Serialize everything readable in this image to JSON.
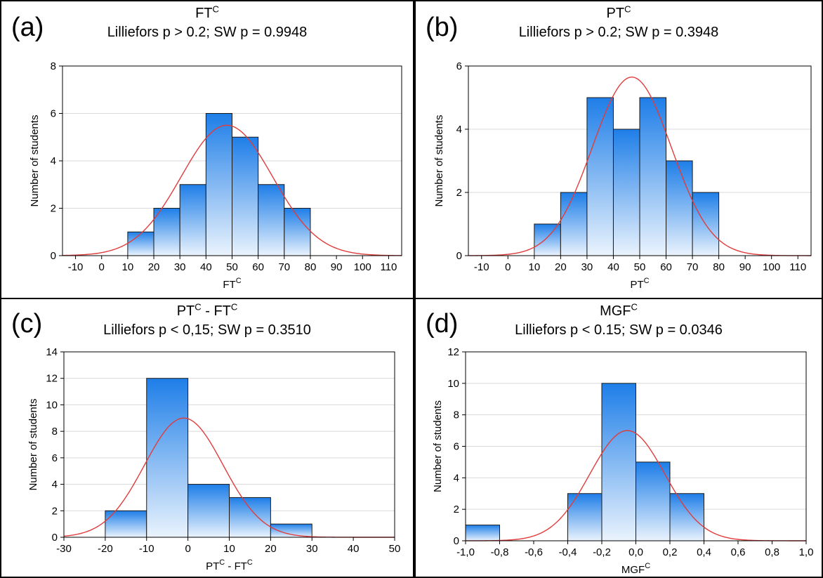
{
  "panels": [
    {
      "letter": "(a)",
      "title_main": "FT",
      "title_main_sup": "C",
      "title_main_part2": "",
      "title_main_part2_sup": "",
      "subtitle": "Lilliefors p > 0.2; SW p = 0.9948"
    },
    {
      "letter": "(b)",
      "title_main": "PT",
      "title_main_sup": "C",
      "title_main_part2": "",
      "title_main_part2_sup": "",
      "subtitle": "Lilliefors p > 0.2; SW p = 0.3948"
    },
    {
      "letter": "(c)",
      "title_main": "PT",
      "title_main_sup": "C",
      "title_main_part2": " - FT",
      "title_main_part2_sup": "C",
      "subtitle": "Lilliefors p < 0,15; SW p = 0.3510"
    },
    {
      "letter": "(d)",
      "title_main": "MGF",
      "title_main_sup": "C",
      "title_main_part2": "",
      "title_main_part2_sup": "",
      "subtitle": "Lilliefors p < 0.15; SW p = 0.0346"
    }
  ],
  "chart_data": [
    {
      "type": "bar",
      "title": "FT^C",
      "subtitle": "Lilliefors p > 0.2; SW p = 0.9948",
      "xlabel": "FT^C",
      "xlabel_base": "FT",
      "xlabel_sup": "C",
      "xlabel_base2": "",
      "xlabel_sup2": "",
      "ylabel": "Number of students",
      "xlim": [
        -15,
        115
      ],
      "ylim": [
        0,
        8
      ],
      "xticks": [
        -10,
        0,
        10,
        20,
        30,
        40,
        50,
        60,
        70,
        80,
        90,
        100,
        110
      ],
      "xtick_labels": [
        "-10",
        "0",
        "10",
        "20",
        "30",
        "40",
        "50",
        "60",
        "70",
        "80",
        "90",
        "100",
        "110"
      ],
      "yticks": [
        0,
        2,
        4,
        6,
        8
      ],
      "bin_edges": [
        10,
        20,
        30,
        40,
        50,
        60,
        70,
        80
      ],
      "values": [
        1,
        2,
        3,
        6,
        5,
        3,
        2
      ],
      "normal_fit": {
        "mean": 48,
        "sd": 17.5,
        "peak": 5.5
      },
      "grid": true,
      "bar_color": "#1e7ee8",
      "curve_color": "#e03c3c"
    },
    {
      "type": "bar",
      "title": "PT^C",
      "subtitle": "Lilliefors p > 0.2; SW p = 0.3948",
      "xlabel": "PT^C",
      "xlabel_base": "PT",
      "xlabel_sup": "C",
      "xlabel_base2": "",
      "xlabel_sup2": "",
      "ylabel": "Number of students",
      "xlim": [
        -15,
        115
      ],
      "ylim": [
        0,
        6
      ],
      "xticks": [
        -10,
        0,
        10,
        20,
        30,
        40,
        50,
        60,
        70,
        80,
        90,
        100,
        110
      ],
      "xtick_labels": [
        "-10",
        "0",
        "10",
        "20",
        "30",
        "40",
        "50",
        "60",
        "70",
        "80",
        "90",
        "100",
        "110"
      ],
      "yticks": [
        0,
        2,
        4,
        6
      ],
      "bin_edges": [
        10,
        20,
        30,
        40,
        50,
        60,
        70,
        80
      ],
      "values": [
        1,
        2,
        5,
        4,
        5,
        3,
        2
      ],
      "normal_fit": {
        "mean": 47,
        "sd": 15,
        "peak": 5.65
      },
      "grid": true,
      "bar_color": "#1e7ee8",
      "curve_color": "#e03c3c"
    },
    {
      "type": "bar",
      "title": "PT^C - FT^C",
      "subtitle": "Lilliefors p < 0,15; SW p = 0.3510",
      "xlabel": "PT^C - FT^C",
      "xlabel_base": "PT",
      "xlabel_sup": "C",
      "xlabel_base2": " - FT",
      "xlabel_sup2": "C",
      "ylabel": "Number of students",
      "xlim": [
        -30,
        50
      ],
      "ylim": [
        0,
        14
      ],
      "xticks": [
        -30,
        -20,
        -10,
        0,
        10,
        20,
        30,
        40,
        50
      ],
      "xtick_labels": [
        "-30",
        "-20",
        "-10",
        "0",
        "10",
        "20",
        "30",
        "40",
        "50"
      ],
      "yticks": [
        0,
        2,
        4,
        6,
        8,
        10,
        12,
        14
      ],
      "bin_edges": [
        -20,
        -10,
        0,
        10,
        20,
        30
      ],
      "values": [
        2,
        12,
        4,
        3,
        1
      ],
      "normal_fit": {
        "mean": -1,
        "sd": 9.5,
        "peak": 9.0
      },
      "grid": true,
      "bar_color": "#1e7ee8",
      "curve_color": "#e03c3c"
    },
    {
      "type": "bar",
      "title": "MGF^C",
      "subtitle": "Lilliefors p < 0.15; SW p = 0.0346",
      "xlabel": "MGF^C",
      "xlabel_base": "MGF",
      "xlabel_sup": "C",
      "xlabel_base2": "",
      "xlabel_sup2": "",
      "ylabel": "Number of students",
      "xlim": [
        -1.0,
        1.0
      ],
      "ylim": [
        0,
        12
      ],
      "xticks": [
        -1.0,
        -0.8,
        -0.6,
        -0.4,
        -0.2,
        0.0,
        0.2,
        0.4,
        0.6,
        0.8,
        1.0
      ],
      "xtick_labels": [
        "-1,0",
        "-0,8",
        "-0,6",
        "-0,4",
        "-0,2",
        "0,0",
        "0,2",
        "0,4",
        "0,6",
        "0,8",
        "1,0"
      ],
      "yticks": [
        0,
        2,
        4,
        6,
        8,
        10,
        12
      ],
      "bin_edges": [
        -1.0,
        -0.8,
        -0.6,
        -0.4,
        -0.2,
        0.0,
        0.2,
        0.4
      ],
      "values": [
        1,
        0,
        0,
        3,
        10,
        5,
        3
      ],
      "normal_fit": {
        "mean": -0.05,
        "sd": 0.22,
        "peak": 7.0
      },
      "grid": true,
      "bar_color": "#1e7ee8",
      "curve_color": "#e03c3c"
    }
  ]
}
